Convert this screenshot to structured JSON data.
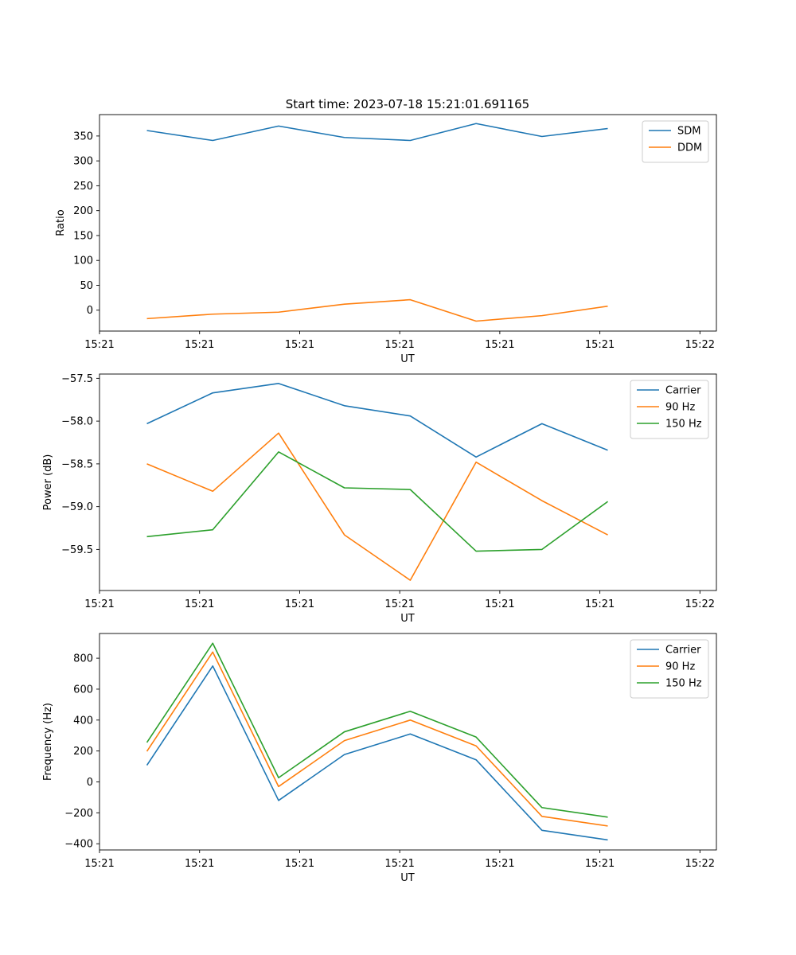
{
  "figure": {
    "title": "Start time: 2023-07-18 15:21:01.691165"
  },
  "colors": {
    "blue": "#1f77b4",
    "orange": "#ff7f0e",
    "green": "#2ca02c",
    "axis": "#000000",
    "legend_border": "#cccccc"
  },
  "chart_data": [
    {
      "type": "line",
      "title": "Start time: 2023-07-18 15:21:01.691165",
      "xlabel": "UT",
      "ylabel": "Ratio",
      "xlim": [
        -0.72,
        8.65
      ],
      "ylim": [
        -42,
        393
      ],
      "x": [
        0,
        1,
        2,
        3,
        4,
        5,
        6,
        7
      ],
      "xticks": [
        -0.72,
        0.8,
        2.32,
        3.84,
        5.36,
        6.88,
        8.4
      ],
      "xtick_labels": [
        "15:21",
        "15:21",
        "15:21",
        "15:21",
        "15:21",
        "15:21",
        "15:21"
      ],
      "xtick_last_label": "15:22",
      "yticks": [
        0,
        50,
        100,
        150,
        200,
        250,
        300,
        350
      ],
      "ytick_labels": [
        "0",
        "50",
        "100",
        "150",
        "200",
        "250",
        "300",
        "350"
      ],
      "legend": "top-right",
      "series": [
        {
          "name": "SDM",
          "color": "#1f77b4",
          "values": [
            361,
            341,
            370,
            347,
            341,
            375,
            349,
            365
          ]
        },
        {
          "name": "DDM",
          "color": "#ff7f0e",
          "values": [
            -17,
            -8,
            -4,
            12,
            21,
            -22,
            -11,
            8
          ]
        }
      ]
    },
    {
      "type": "line",
      "title": "",
      "xlabel": "UT",
      "ylabel": "Power (dB)",
      "xlim": [
        -0.72,
        8.65
      ],
      "ylim": [
        -59.98,
        -57.45
      ],
      "x": [
        0,
        1,
        2,
        3,
        4,
        5,
        6,
        7
      ],
      "xticks": [
        -0.72,
        0.8,
        2.32,
        3.84,
        5.36,
        6.88,
        8.4
      ],
      "xtick_labels": [
        "15:21",
        "15:21",
        "15:21",
        "15:21",
        "15:21",
        "15:21",
        "15:21"
      ],
      "xtick_last_label": "15:22",
      "yticks": [
        -59.5,
        -59.0,
        -58.5,
        -58.0,
        -57.5
      ],
      "ytick_labels": [
        "−59.5",
        "−59.0",
        "−58.5",
        "−58.0",
        "−57.5"
      ],
      "legend": "top-right",
      "series": [
        {
          "name": "Carrier",
          "color": "#1f77b4",
          "values": [
            -58.03,
            -57.67,
            -57.56,
            -57.82,
            -57.94,
            -58.42,
            -58.03,
            -58.34
          ]
        },
        {
          "name": "90 Hz",
          "color": "#ff7f0e",
          "values": [
            -58.5,
            -58.82,
            -58.14,
            -59.33,
            -59.86,
            -58.48,
            -58.93,
            -59.33
          ]
        },
        {
          "name": "150 Hz",
          "color": "#2ca02c",
          "values": [
            -59.35,
            -59.27,
            -58.36,
            -58.78,
            -58.8,
            -59.52,
            -59.5,
            -58.94
          ]
        }
      ]
    },
    {
      "type": "line",
      "title": "",
      "xlabel": "UT",
      "ylabel": "Frequency (Hz)",
      "xlim": [
        -0.72,
        8.65
      ],
      "ylim": [
        -440,
        960
      ],
      "x": [
        0,
        1,
        2,
        3,
        4,
        5,
        6,
        7
      ],
      "xticks": [
        -0.72,
        0.8,
        2.32,
        3.84,
        5.36,
        6.88,
        8.4
      ],
      "xtick_labels": [
        "15:21",
        "15:21",
        "15:21",
        "15:21",
        "15:21",
        "15:21",
        "15:21"
      ],
      "xtick_last_label": "15:22",
      "yticks": [
        -400,
        -200,
        0,
        200,
        400,
        600,
        800
      ],
      "ytick_labels": [
        "−400",
        "−200",
        "0",
        "200",
        "400",
        "600",
        "800"
      ],
      "legend": "top-right",
      "series": [
        {
          "name": "Carrier",
          "color": "#1f77b4",
          "values": [
            108,
            750,
            -120,
            177,
            310,
            143,
            -313,
            -375
          ]
        },
        {
          "name": "90 Hz",
          "color": "#ff7f0e",
          "values": [
            198,
            840,
            -30,
            267,
            400,
            233,
            -223,
            -285
          ]
        },
        {
          "name": "150 Hz",
          "color": "#2ca02c",
          "values": [
            255,
            897,
            27,
            324,
            457,
            290,
            -166,
            -228
          ]
        }
      ]
    }
  ]
}
